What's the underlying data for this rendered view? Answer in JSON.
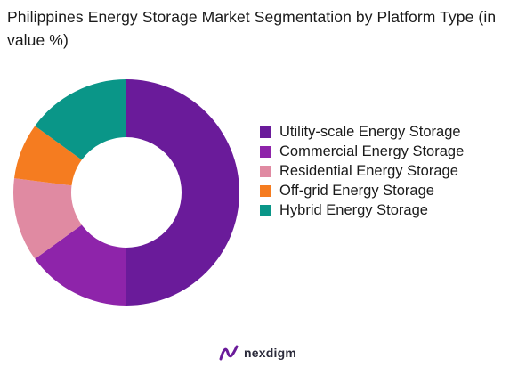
{
  "title": "Philippines Energy Storage Market Segmentation by Platform Type (in value %)",
  "brand": {
    "name": "nexdigm"
  },
  "chart_data": {
    "type": "pie",
    "subtype": "donut",
    "title": "Philippines Energy Storage Market Segmentation by Platform Type (in value %)",
    "legend_position": "right",
    "series": [
      {
        "name": "Utility-scale Energy Storage",
        "value": 50,
        "color": "#6a1b9a"
      },
      {
        "name": "Commercial Energy Storage",
        "value": 15,
        "color": "#8e24aa"
      },
      {
        "name": "Residential Energy Storage",
        "value": 12,
        "color": "#e08aa2"
      },
      {
        "name": "Off-grid Energy Storage",
        "value": 8,
        "color": "#f57c20"
      },
      {
        "name": "Hybrid Energy Storage",
        "value": 15,
        "color": "#0a9688"
      }
    ]
  }
}
